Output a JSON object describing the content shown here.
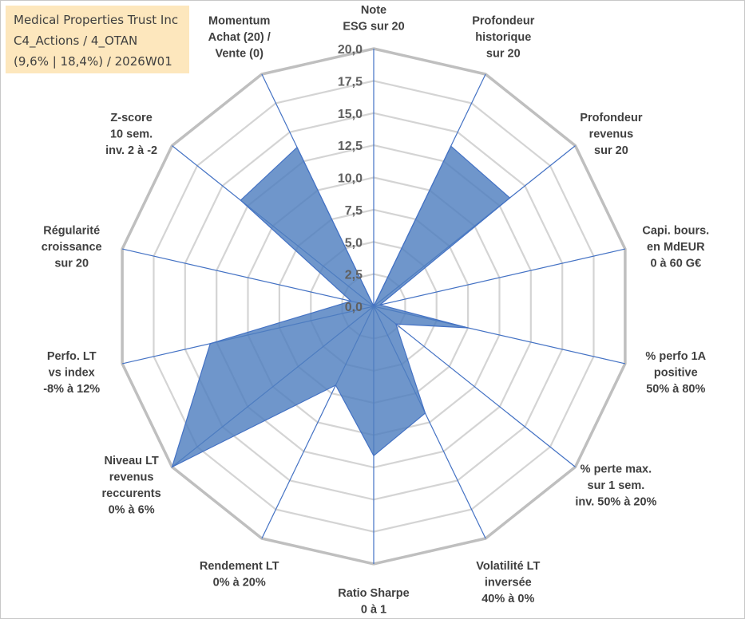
{
  "title": {
    "line1": "Medical Properties Trust Inc",
    "line2": "C4_Actions / 4_OTAN",
    "line3": "(9,6% | 18,4%) / 2026W01"
  },
  "chart_data": {
    "type": "radar",
    "title": "Medical Properties Trust Inc",
    "rmin": 0,
    "rmax": 20,
    "tick_step": 2.5,
    "tick_labels": [
      "0,0",
      "2,5",
      "5,0",
      "7,5",
      "10,0",
      "12,5",
      "15,0",
      "17,5",
      "20,0"
    ],
    "axes": [
      {
        "id": "esg",
        "label": [
          "Note",
          "ESG sur 20"
        ]
      },
      {
        "id": "prof-hist",
        "label": [
          "Profondeur",
          "historique",
          "sur 20"
        ]
      },
      {
        "id": "prof-rev",
        "label": [
          "Profondeur",
          "revenus",
          "sur 20"
        ]
      },
      {
        "id": "capi",
        "label": [
          "Capi. bours.",
          "en MdEUR",
          "0 à 60 G€"
        ]
      },
      {
        "id": "perfo-1a",
        "label": [
          "% perfo 1A",
          "positive",
          "50% à 80%"
        ]
      },
      {
        "id": "perte-max",
        "label": [
          "% perte max.",
          "sur 1 sem.",
          "inv. 50% à 20%"
        ]
      },
      {
        "id": "volatilite",
        "label": [
          "Volatilité LT",
          "inversée",
          "40% à 0%"
        ]
      },
      {
        "id": "sharpe",
        "label": [
          "Ratio Sharpe",
          "0 à 1"
        ]
      },
      {
        "id": "rendement",
        "label": [
          "Rendement LT",
          "0% à 20%"
        ]
      },
      {
        "id": "niveau-lt",
        "label": [
          "Niveau LT",
          "revenus",
          "reccurents",
          "0% à 6%"
        ]
      },
      {
        "id": "perfo-lt",
        "label": [
          "Perfo. LT",
          "vs index",
          "-8% à 12%"
        ]
      },
      {
        "id": "regularite",
        "label": [
          "Régularité",
          "croissance",
          "sur 20"
        ]
      },
      {
        "id": "zscore",
        "label": [
          "Z-score",
          "10 sem.",
          "inv. 2 à -2"
        ]
      },
      {
        "id": "momentum",
        "label": [
          "Momentum",
          "Achat (20) /",
          "Vente (0)"
        ]
      }
    ],
    "series": [
      {
        "name": "Medical Properties Trust Inc",
        "color": "#4f7fbf",
        "values": [
          0,
          13.8,
          13.5,
          0.5,
          7.5,
          2.2,
          9.2,
          11.6,
          6.8,
          20,
          13.0,
          1.8,
          13.2,
          13.7
        ]
      }
    ]
  }
}
